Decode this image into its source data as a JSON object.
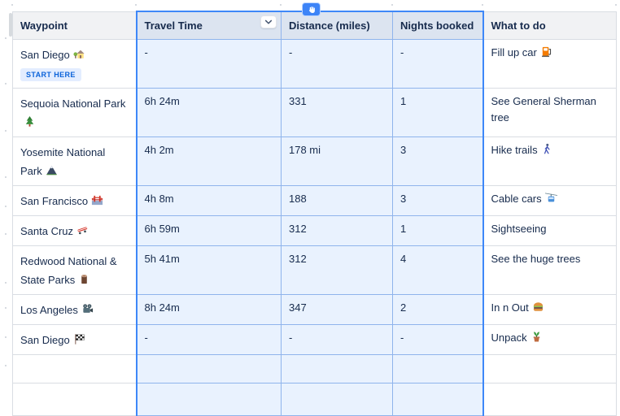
{
  "table": {
    "columns": [
      {
        "label": "Waypoint",
        "selected": false
      },
      {
        "label": "Travel Time",
        "selected": true,
        "has_menu_button": true
      },
      {
        "label": "Distance (miles)",
        "selected": true
      },
      {
        "label": "Nights booked",
        "selected": true
      },
      {
        "label": "What to do",
        "selected": false
      }
    ],
    "rows": [
      {
        "waypoint": "San Diego",
        "waypoint_icon": "house-with-garden",
        "badge": "START HERE",
        "travel_time": "-",
        "distance": "-",
        "nights_booked": "-",
        "what_to_do": "Fill up car",
        "what_to_do_icon": "fuel-pump"
      },
      {
        "waypoint": "Sequoia National Park",
        "waypoint_icon": "evergreen-tree",
        "badge": "",
        "travel_time": "6h 24m",
        "distance": "331",
        "nights_booked": "1",
        "what_to_do": "See General Sherman tree",
        "what_to_do_icon": ""
      },
      {
        "waypoint": "Yosemite National Park",
        "waypoint_icon": "mountain",
        "badge": "",
        "travel_time": "4h 2m",
        "distance": "178 mi",
        "nights_booked": "3",
        "what_to_do": "Hike trails",
        "what_to_do_icon": "person-walking"
      },
      {
        "waypoint": "San Francisco",
        "waypoint_icon": "bridge-in-fog",
        "badge": "",
        "travel_time": "4h 8m",
        "distance": "188",
        "nights_booked": "3",
        "what_to_do": "Cable cars",
        "what_to_do_icon": "aerial-tramway"
      },
      {
        "waypoint": "Santa Cruz",
        "waypoint_icon": "skateboard",
        "badge": "",
        "travel_time": "6h 59m",
        "distance": "312",
        "nights_booked": "1",
        "what_to_do": "Sightseeing",
        "what_to_do_icon": ""
      },
      {
        "waypoint": "Redwood National & State Parks",
        "waypoint_icon": "wood-log",
        "badge": "",
        "travel_time": "5h 41m",
        "distance": "312",
        "nights_booked": "4",
        "what_to_do": "See the huge trees",
        "what_to_do_icon": ""
      },
      {
        "waypoint": "Los Angeles",
        "waypoint_icon": "movie-camera",
        "badge": "",
        "travel_time": "8h 24m",
        "distance": "347",
        "nights_booked": "2",
        "what_to_do": "In n Out",
        "what_to_do_icon": "hamburger"
      },
      {
        "waypoint": "San Diego",
        "waypoint_icon": "chequered-flag",
        "badge": "",
        "travel_time": "-",
        "distance": "-",
        "nights_booked": "-",
        "what_to_do": "Unpack",
        "what_to_do_icon": "potted-plant"
      },
      {
        "waypoint": "",
        "waypoint_icon": "",
        "badge": "",
        "travel_time": "",
        "distance": "",
        "nights_booked": "",
        "what_to_do": "",
        "what_to_do_icon": ""
      },
      {
        "waypoint": "",
        "waypoint_icon": "",
        "badge": "",
        "travel_time": "",
        "distance": "",
        "nights_booked": "",
        "what_to_do": "",
        "what_to_do_icon": ""
      }
    ]
  },
  "cursor": {
    "icon": "grab-hand-cursor"
  },
  "colors": {
    "selection_border": "#3E87F8",
    "selection_cell_fill": "#E9F2FE",
    "selection_header_fill": "#DCE4F0",
    "header_fill": "#F1F2F4",
    "grid_border": "#D9DDE3",
    "text": "#172B4D",
    "badge_fill": "#E3EDFF",
    "badge_text": "#0B63D9",
    "cursor_fill": "#3D84F7"
  }
}
